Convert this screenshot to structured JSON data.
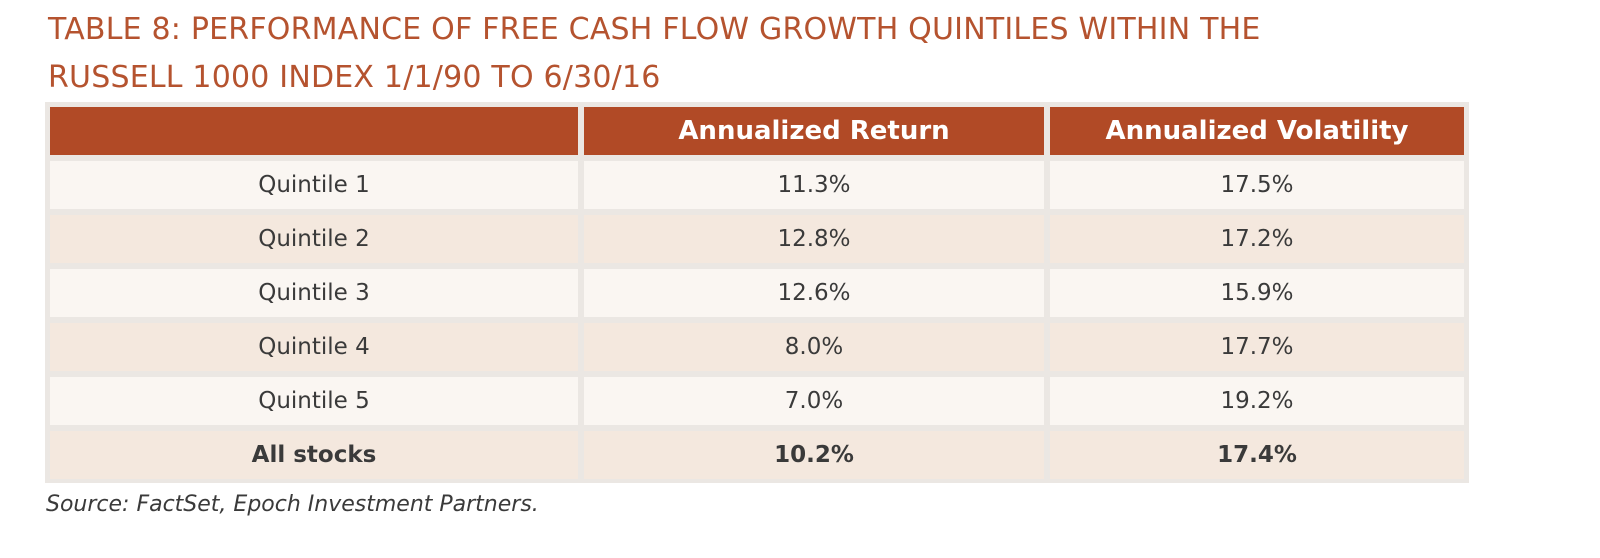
{
  "chart_data": {
    "type": "table",
    "title_lines": [
      "TABLE 8: PERFORMANCE OF FREE CASH FLOW GROWTH QUINTILES WITHIN THE",
      "RUSSELL 1000 INDEX 1/1/90 TO 6/30/16"
    ],
    "columns": [
      "",
      "Annualized Return",
      "Annualized Volatility"
    ],
    "rows": [
      {
        "label": "Quintile 1",
        "return": "11.3%",
        "volatility": "17.5%"
      },
      {
        "label": "Quintile 2",
        "return": "12.8%",
        "volatility": "17.2%"
      },
      {
        "label": "Quintile 3",
        "return": "12.6%",
        "volatility": "15.9%"
      },
      {
        "label": "Quintile 4",
        "return": "8.0%",
        "volatility": "17.7%"
      },
      {
        "label": "Quintile 5",
        "return": "7.0%",
        "volatility": "19.2%"
      },
      {
        "label": "All stocks",
        "return": "10.2%",
        "volatility": "17.4%",
        "bold": true
      }
    ],
    "source": "Source: FactSet, Epoch Investment Partners."
  },
  "colors": {
    "title": "#b5532f",
    "header_bg": "#b14a26",
    "row_light": "#faf6f2",
    "row_dark": "#f4e8de",
    "grid": "#ebe7e3"
  }
}
